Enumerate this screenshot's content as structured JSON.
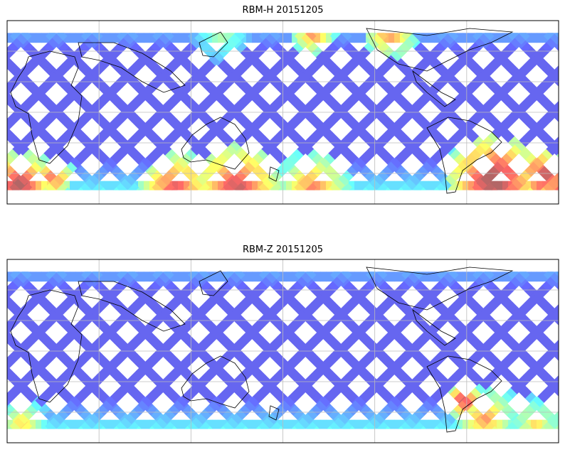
{
  "chart_data": [
    {
      "type": "heatmap",
      "title": "RBM-H 20151205",
      "projection": "plate carree",
      "lon_range": [
        0,
        360
      ],
      "lat_range": [
        -60,
        60
      ],
      "gridlines": {
        "lon_step": 60,
        "lat_step": 20
      },
      "colormap": "jet",
      "data_lat_extent": [
        -51,
        52
      ],
      "base_value": 0.1,
      "hotspots": [
        {
          "lon": 8,
          "lat": -48,
          "radius": 22,
          "value": 0.95
        },
        {
          "lon": 30,
          "lat": -42,
          "radius": 14,
          "value": 0.8
        },
        {
          "lon": 110,
          "lat": -50,
          "radius": 25,
          "value": 0.85
        },
        {
          "lon": 150,
          "lat": -50,
          "radius": 30,
          "value": 0.9
        },
        {
          "lon": 200,
          "lat": -50,
          "radius": 25,
          "value": 0.75
        },
        {
          "lon": 318,
          "lat": -45,
          "radius": 30,
          "value": 1.0
        },
        {
          "lon": 350,
          "lat": -42,
          "radius": 18,
          "value": 0.95
        },
        {
          "lon": 300,
          "lat": -30,
          "radius": 12,
          "value": 0.65
        },
        {
          "lon": 200,
          "lat": 52,
          "radius": 15,
          "value": 0.75
        },
        {
          "lon": 250,
          "lat": 52,
          "radius": 18,
          "value": 0.75
        },
        {
          "lon": 140,
          "lat": 52,
          "radius": 20,
          "value": 0.45
        }
      ]
    },
    {
      "type": "heatmap",
      "title": "RBM-Z 20151205",
      "projection": "plate carree",
      "lon_range": [
        0,
        360
      ],
      "lat_range": [
        -60,
        60
      ],
      "gridlines": {
        "lon_step": 60,
        "lat_step": 20
      },
      "colormap": "jet",
      "data_lat_extent": [
        -51,
        52
      ],
      "base_value": 0.1,
      "hotspots": [
        {
          "lon": 10,
          "lat": -48,
          "radius": 18,
          "value": 0.6
        },
        {
          "lon": 298,
          "lat": -32,
          "radius": 12,
          "value": 0.9
        },
        {
          "lon": 312,
          "lat": -44,
          "radius": 22,
          "value": 0.7
        },
        {
          "lon": 345,
          "lat": -48,
          "radius": 18,
          "value": 0.6
        },
        {
          "lon": 330,
          "lat": -35,
          "radius": 10,
          "value": 0.5
        }
      ]
    }
  ]
}
